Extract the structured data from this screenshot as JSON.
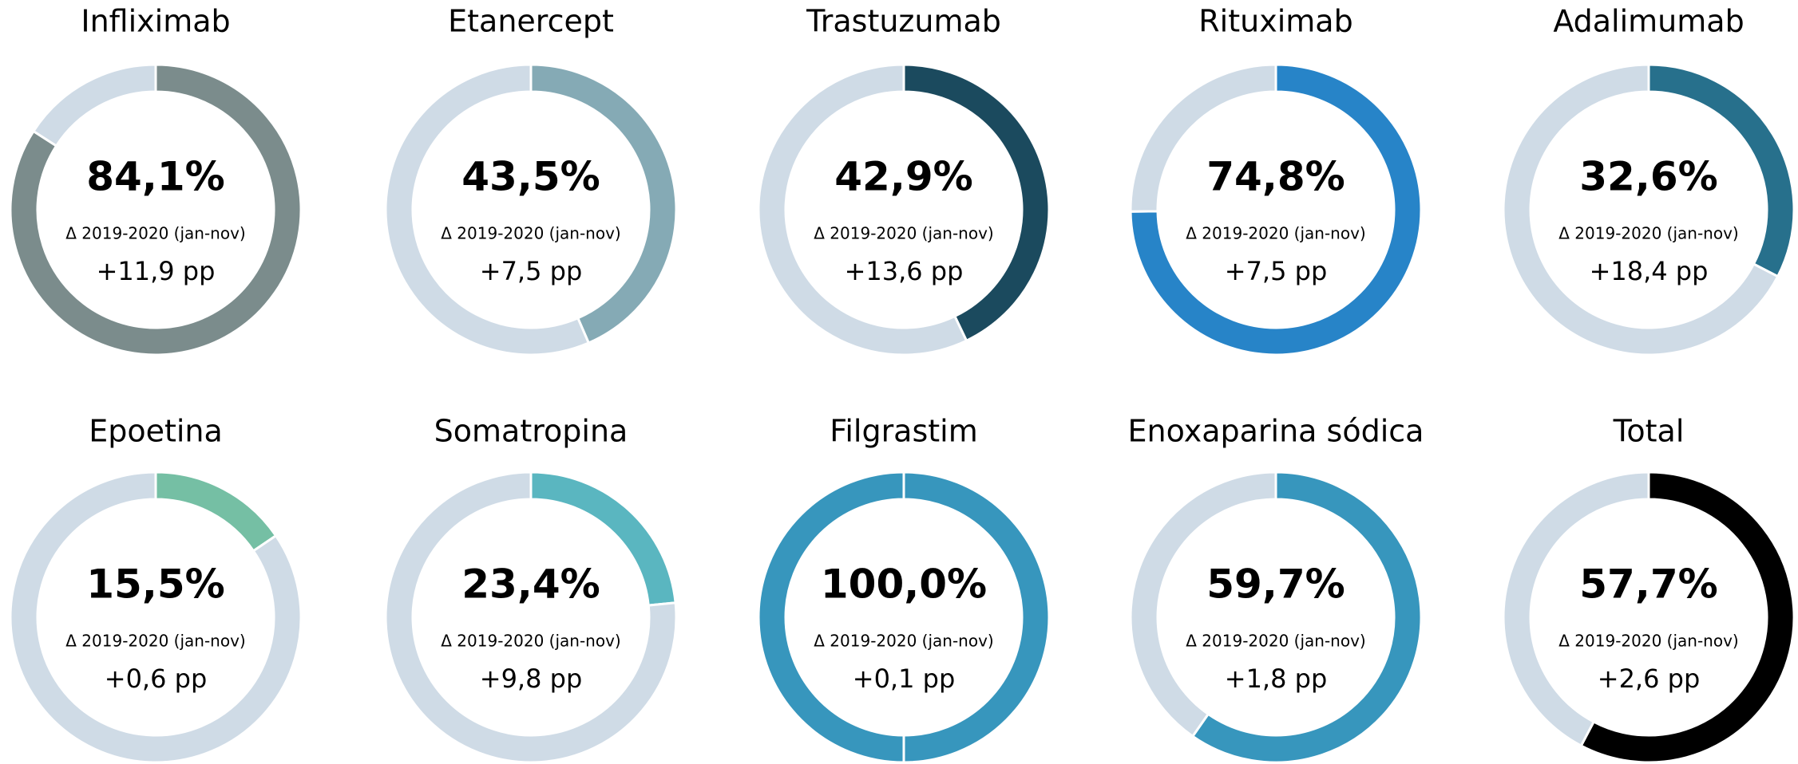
{
  "chart_data": [
    {
      "type": "donut",
      "title": "Infliximab",
      "values": [
        84.1,
        15.9
      ],
      "value_labels": [
        "84,1%",
        null
      ],
      "colors": [
        "#7b8c8c",
        "#cfdbe6"
      ],
      "subtitle": "Δ 2019-2020  (jan-nov)",
      "annotation": "+11,9 pp"
    },
    {
      "type": "donut",
      "title": "Etanercept",
      "values": [
        43.5,
        56.5
      ],
      "value_labels": [
        "43,5%",
        null
      ],
      "colors": [
        "#85aab5",
        "#cfdbe6"
      ],
      "subtitle": "Δ 2019-2020  (jan-nov)",
      "annotation": "+7,5 pp"
    },
    {
      "type": "donut",
      "title": "Trastuzumab",
      "values": [
        42.9,
        57.1
      ],
      "value_labels": [
        "42,9%",
        null
      ],
      "colors": [
        "#1b4a5e",
        "#cfdbe6"
      ],
      "subtitle": "Δ 2019-2020  (jan-nov)",
      "annotation": "+13,6 pp"
    },
    {
      "type": "donut",
      "title": "Rituximab",
      "values": [
        74.8,
        25.2
      ],
      "value_labels": [
        "74,8%",
        null
      ],
      "colors": [
        "#2784c8",
        "#cfdbe6"
      ],
      "subtitle": "Δ 2019-2020  (jan-nov)",
      "annotation": "+7,5 pp"
    },
    {
      "type": "donut",
      "title": "Adalimumab",
      "values": [
        32.6,
        67.4
      ],
      "value_labels": [
        "32,6%",
        null
      ],
      "colors": [
        "#27708c",
        "#cfdbe6"
      ],
      "subtitle": "Δ 2019-2020  (jan-nov)",
      "annotation": "+18,4 pp"
    },
    {
      "type": "donut",
      "title": "Epoetina",
      "values": [
        15.5,
        84.5
      ],
      "value_labels": [
        "15,5%",
        null
      ],
      "colors": [
        "#75bfa4",
        "#cfdbe6"
      ],
      "subtitle": "Δ 2019-2020  (jan-nov)",
      "annotation": "+0,6 pp"
    },
    {
      "type": "donut",
      "title": "Somatropina",
      "values": [
        23.4,
        76.6
      ],
      "value_labels": [
        "23,4%",
        null
      ],
      "colors": [
        "#5ab6c0",
        "#cfdbe6"
      ],
      "subtitle": "Δ 2019-2020  (jan-nov)",
      "annotation": "+9,8 pp"
    },
    {
      "type": "donut",
      "title": "Filgrastim",
      "values": [
        100.0,
        0
      ],
      "value_labels": [
        "100,0%",
        null
      ],
      "colors": [
        "#3796bd",
        "#cfdbe6"
      ],
      "subtitle": "Δ 2019-2020  (jan-nov)",
      "annotation": "+0,1 pp"
    },
    {
      "type": "donut",
      "title": "Enoxaparina sódica",
      "values": [
        59.7,
        40.3
      ],
      "value_labels": [
        "59,7%",
        null
      ],
      "colors": [
        "#3796bd",
        "#cfdbe6"
      ],
      "subtitle": "Δ 2019-2020  (jan-nov)",
      "annotation": "+1,8 pp"
    },
    {
      "type": "donut",
      "title": "Total",
      "values": [
        57.7,
        42.3
      ],
      "value_labels": [
        "57,7%",
        null
      ],
      "colors": [
        "#000000",
        "#cfdbe6"
      ],
      "subtitle": "Δ 2019-2020  (jan-nov)",
      "annotation": "+2,6 pp"
    }
  ]
}
